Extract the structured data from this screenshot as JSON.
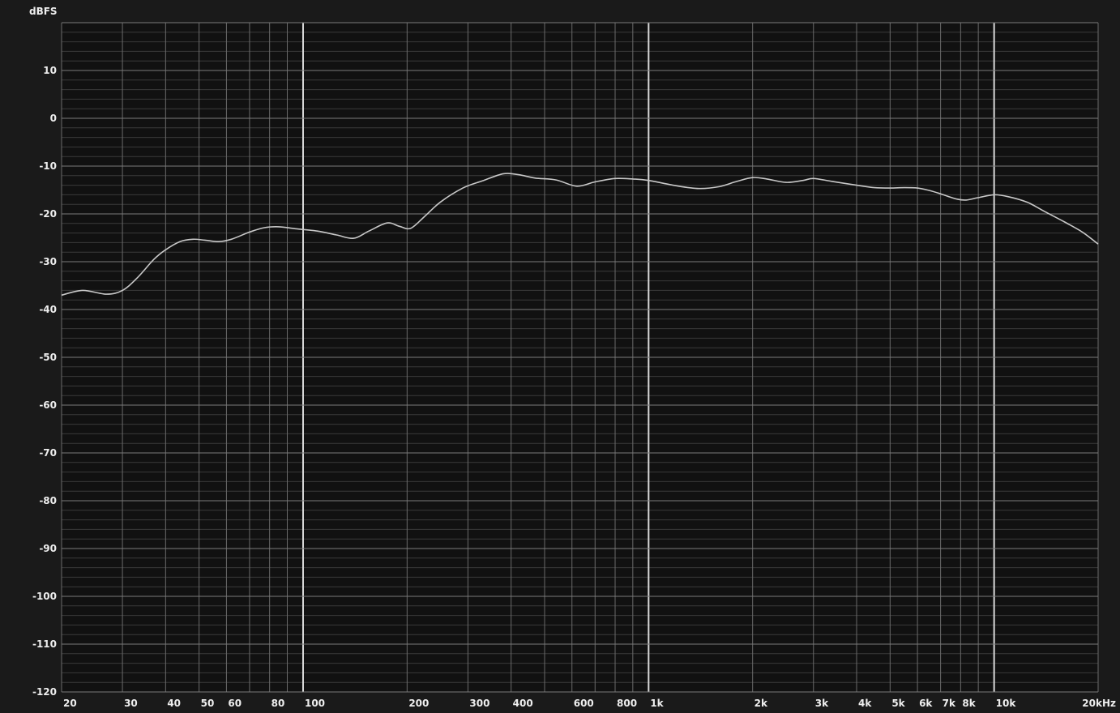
{
  "chart_data": {
    "type": "line",
    "ylabel": "dBFS",
    "x_scale": "log",
    "xlim": [
      20,
      20000
    ],
    "ylim": [
      -120,
      20
    ],
    "x_ticks": [
      {
        "value": 20,
        "label": "20"
      },
      {
        "value": 30,
        "label": "30"
      },
      {
        "value": 40,
        "label": "40"
      },
      {
        "value": 50,
        "label": "50"
      },
      {
        "value": 60,
        "label": "60"
      },
      {
        "value": 80,
        "label": "80"
      },
      {
        "value": 100,
        "label": "100"
      },
      {
        "value": 200,
        "label": "200"
      },
      {
        "value": 300,
        "label": "300"
      },
      {
        "value": 400,
        "label": "400"
      },
      {
        "value": 600,
        "label": "600"
      },
      {
        "value": 800,
        "label": "800"
      },
      {
        "value": 1000,
        "label": "1k"
      },
      {
        "value": 2000,
        "label": "2k"
      },
      {
        "value": 3000,
        "label": "3k"
      },
      {
        "value": 4000,
        "label": "4k"
      },
      {
        "value": 5000,
        "label": "5k"
      },
      {
        "value": 6000,
        "label": "6k"
      },
      {
        "value": 7000,
        "label": "7k"
      },
      {
        "value": 8000,
        "label": "8k"
      },
      {
        "value": 10000,
        "label": "10k"
      },
      {
        "value": 20000,
        "label": "20kHz"
      }
    ],
    "y_ticks": [
      {
        "value": 10,
        "label": "10"
      },
      {
        "value": 0,
        "label": "0"
      },
      {
        "value": -10,
        "label": "-10"
      },
      {
        "value": -20,
        "label": "-20"
      },
      {
        "value": -30,
        "label": "-30"
      },
      {
        "value": -40,
        "label": "-40"
      },
      {
        "value": -50,
        "label": "-50"
      },
      {
        "value": -60,
        "label": "-60"
      },
      {
        "value": -70,
        "label": "-70"
      },
      {
        "value": -80,
        "label": "-80"
      },
      {
        "value": -90,
        "label": "-90"
      },
      {
        "value": -100,
        "label": "-100"
      },
      {
        "value": -110,
        "label": "-110"
      },
      {
        "value": -120,
        "label": "-120"
      }
    ],
    "grid": true,
    "series": [
      {
        "color": "#c8c8c8",
        "points": [
          [
            20,
            -37.0
          ],
          [
            23,
            -36.0
          ],
          [
            27,
            -36.8
          ],
          [
            30,
            -36.0
          ],
          [
            33,
            -33.5
          ],
          [
            37,
            -29.5
          ],
          [
            40,
            -27.5
          ],
          [
            44,
            -25.8
          ],
          [
            48,
            -25.3
          ],
          [
            52,
            -25.5
          ],
          [
            57,
            -25.8
          ],
          [
            62,
            -25.3
          ],
          [
            70,
            -23.8
          ],
          [
            77,
            -22.9
          ],
          [
            85,
            -22.7
          ],
          [
            95,
            -23.1
          ],
          [
            110,
            -23.6
          ],
          [
            125,
            -24.4
          ],
          [
            140,
            -25.1
          ],
          [
            155,
            -23.6
          ],
          [
            175,
            -21.9
          ],
          [
            190,
            -22.6
          ],
          [
            205,
            -23.0
          ],
          [
            225,
            -20.5
          ],
          [
            250,
            -17.5
          ],
          [
            290,
            -14.6
          ],
          [
            330,
            -13.1
          ],
          [
            380,
            -11.6
          ],
          [
            420,
            -11.8
          ],
          [
            470,
            -12.5
          ],
          [
            540,
            -12.9
          ],
          [
            620,
            -14.2
          ],
          [
            700,
            -13.3
          ],
          [
            800,
            -12.6
          ],
          [
            900,
            -12.7
          ],
          [
            1000,
            -13.0
          ],
          [
            1200,
            -14.1
          ],
          [
            1400,
            -14.7
          ],
          [
            1600,
            -14.3
          ],
          [
            1800,
            -13.2
          ],
          [
            2000,
            -12.4
          ],
          [
            2200,
            -12.7
          ],
          [
            2500,
            -13.4
          ],
          [
            2800,
            -13.0
          ],
          [
            3000,
            -12.6
          ],
          [
            3400,
            -13.2
          ],
          [
            4000,
            -14.0
          ],
          [
            4500,
            -14.5
          ],
          [
            5000,
            -14.6
          ],
          [
            5500,
            -14.5
          ],
          [
            6000,
            -14.6
          ],
          [
            6500,
            -15.1
          ],
          [
            7000,
            -15.8
          ],
          [
            7800,
            -16.9
          ],
          [
            8300,
            -17.1
          ],
          [
            9000,
            -16.6
          ],
          [
            10000,
            -16.0
          ],
          [
            11000,
            -16.4
          ],
          [
            12500,
            -17.6
          ],
          [
            14000,
            -19.5
          ],
          [
            16000,
            -21.7
          ],
          [
            18000,
            -23.8
          ],
          [
            20000,
            -26.3
          ]
        ]
      }
    ]
  }
}
